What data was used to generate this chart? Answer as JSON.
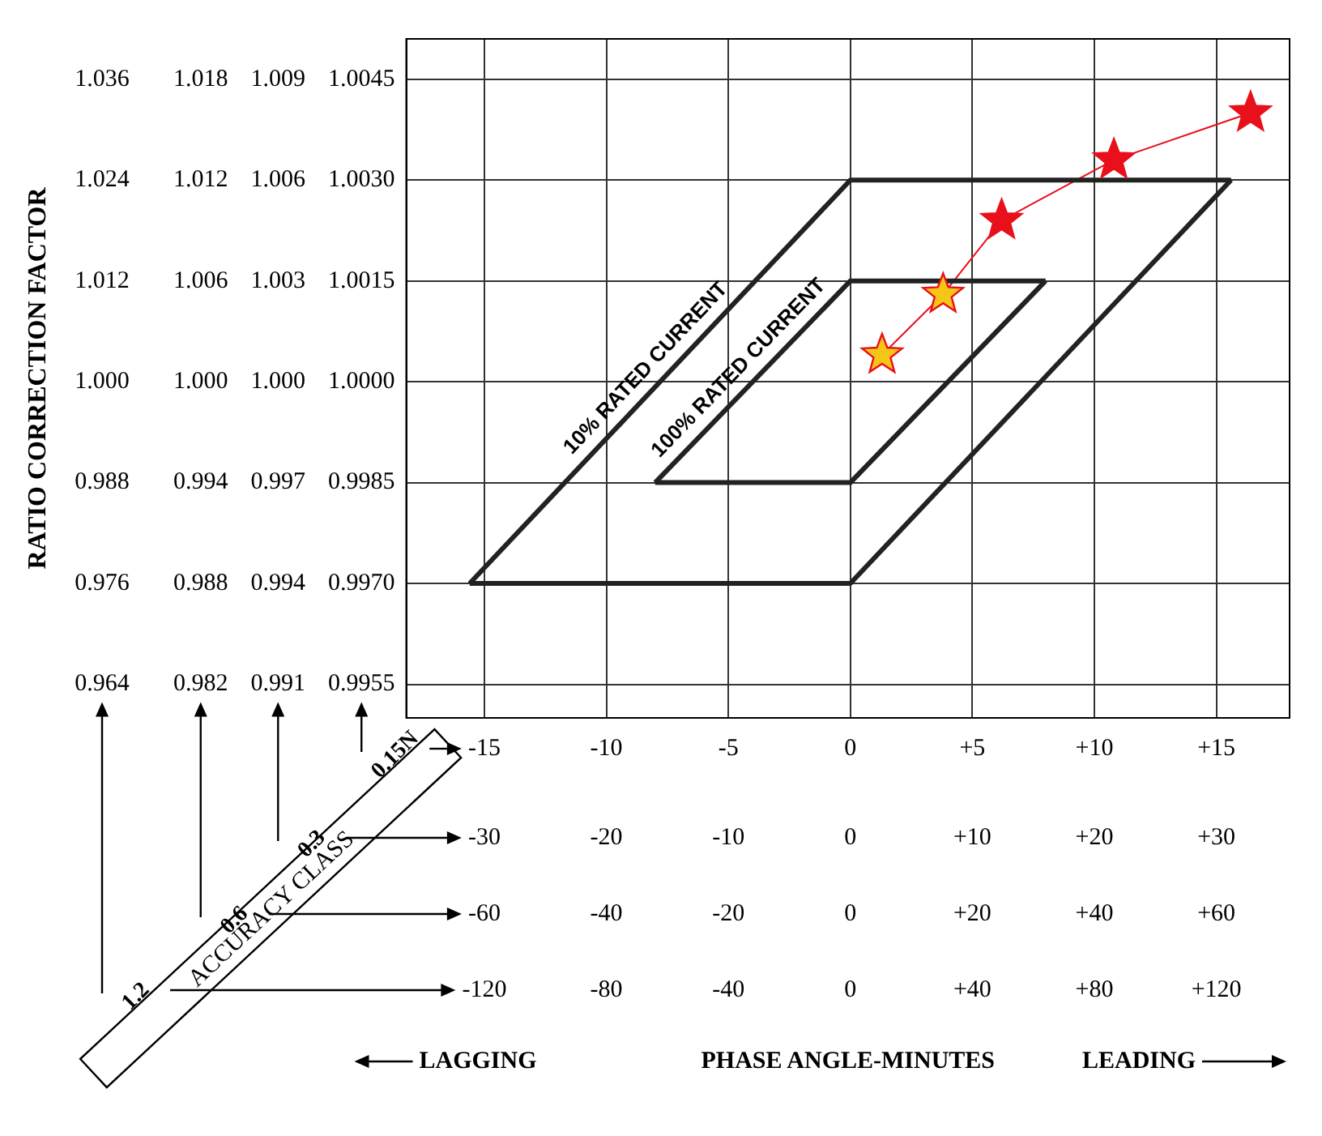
{
  "chart_data": {
    "type": "line",
    "xlim": [
      -18.2,
      18
    ],
    "xticks": [
      -15,
      -10,
      -5,
      0,
      {
        "value": 5,
        "label": "+5"
      },
      {
        "value": 10,
        "label": "+10"
      },
      {
        "value": 15,
        "label": "+15"
      }
    ],
    "x2lim": [
      -36.4,
      36
    ],
    "x2ticks": [
      -30,
      -20,
      -10,
      0,
      {
        "value": 10,
        "label": "+10"
      },
      {
        "value": 20,
        "label": "+20"
      },
      {
        "value": 30,
        "label": "+30"
      }
    ],
    "ylim": [
      0.995,
      1.0051
    ],
    "yticks": [
      0.9955,
      {
        "value": 0.997,
        "label": "0.9970"
      },
      0.9985,
      {
        "value": 1,
        "label": "1.0000"
      },
      1.0015,
      {
        "value": 1.003,
        "label": "1.0030"
      },
      1.0045
    ],
    "y2lim": [
      0.99,
      1.0102
    ],
    "y2ticks": [
      0.991,
      0.994,
      0.997,
      {
        "value": 1,
        "label": "1.000"
      },
      1.003,
      1.006,
      1.009
    ],
    "y3lim": [
      0.98,
      1.0204
    ],
    "y3ticks": [
      0.982,
      0.988,
      0.994,
      {
        "value": 1,
        "label": "1.000"
      },
      1.006,
      1.012,
      1.018
    ],
    "grid": true,
    "series": [
      {
        "type": "line",
        "color": "#222222",
        "marker": "none",
        "x": [
          -15.6,
          0,
          15.6
        ],
        "values": [
          0.997,
          1.003,
          1.003
        ]
      },
      {
        "type": "line",
        "color": "#222222",
        "marker": "none",
        "x": [
          -8,
          0,
          8
        ],
        "values": [
          0.9985,
          1.0015,
          1.0015
        ]
      },
      {
        "type": "line",
        "color": "#222222",
        "marker": "none",
        "x": [
          -15.6,
          0,
          15.6
        ],
        "values": [
          0.997,
          0.997,
          1.003
        ]
      },
      {
        "type": "line",
        "color": "#222222",
        "marker": "none",
        "x": [
          -8,
          0,
          8
        ],
        "values": [
          0.9985,
          0.9985,
          1.0015
        ]
      },
      {
        "type": "line",
        "color": "#e8101a",
        "marker": "star",
        "x": [
          1.3,
          3.8,
          6.2,
          10.8,
          16.4
        ],
        "values": [
          1.0004,
          1.0013,
          1.0024,
          1.0033,
          1.004
        ],
        "colors": [
          "#f5c518",
          "#f5c518",
          "#e8101a",
          "#e8101a",
          "#e8101a"
        ]
      }
    ],
    "annotations": [
      "10% RATED CURRENT",
      "100% RATED CURRENT",
      "0.964",
      "0.976",
      "0.988",
      "1.000",
      "1.012",
      "1.024",
      "1.036",
      "-60",
      "-40",
      "-20",
      "0",
      "+20",
      "+40",
      "+60",
      "-120",
      "-80",
      "-40",
      "0",
      "+40",
      "+80",
      "+120",
      "LAGGING",
      "LEADING",
      "ACCURACY CLASS",
      "1.2",
      "0.6",
      "0.3",
      "0.15N",
      "PHASE ANGLE-MINUTES",
      "RATIO CORRECTION FACTOR"
    ]
  }
}
